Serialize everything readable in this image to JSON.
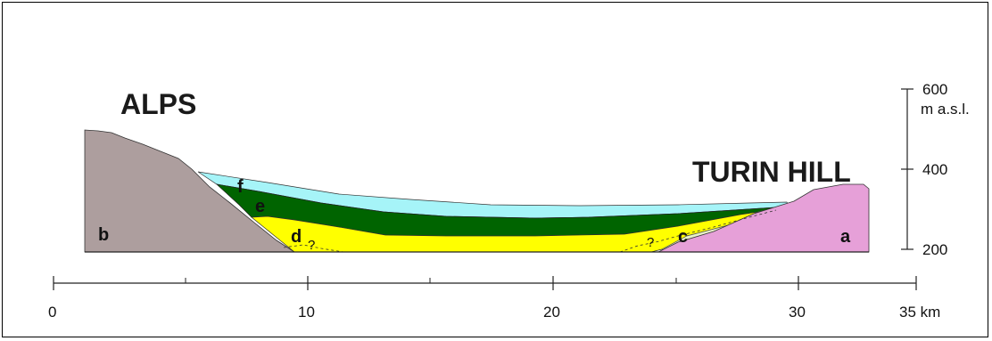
{
  "labels": {
    "alps": "ALPS",
    "turin_hill": "TURIN HILL",
    "unit_a": "a",
    "unit_b": "b",
    "unit_c": "c",
    "unit_d": "d",
    "unit_e": "e",
    "unit_f": "f",
    "question_left": "?",
    "question_right": "?"
  },
  "elevation_axis": {
    "ticks": [
      "600",
      "400",
      "200"
    ],
    "unit": "m a.s.l."
  },
  "distance_axis": {
    "ticks": [
      "0",
      "10",
      "20",
      "30"
    ],
    "end_label": "35 km"
  },
  "colors": {
    "alps_rock": "#ad9e9e",
    "turin_hill": "#e6a0d8",
    "unit_c": "#e8f2c6",
    "unit_d": "#ffff00",
    "unit_e": "#006400",
    "unit_f": "#a6f4f8"
  }
}
